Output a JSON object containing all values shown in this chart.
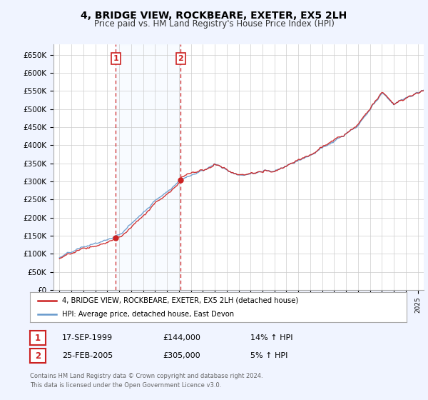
{
  "title": "4, BRIDGE VIEW, ROCKBEARE, EXETER, EX5 2LH",
  "subtitle": "Price paid vs. HM Land Registry's House Price Index (HPI)",
  "ylabel_ticks": [
    "£0",
    "£50K",
    "£100K",
    "£150K",
    "£200K",
    "£250K",
    "£300K",
    "£350K",
    "£400K",
    "£450K",
    "£500K",
    "£550K",
    "£600K",
    "£650K"
  ],
  "ytick_values": [
    0,
    50000,
    100000,
    150000,
    200000,
    250000,
    300000,
    350000,
    400000,
    450000,
    500000,
    550000,
    600000,
    650000
  ],
  "hpi_color": "#6699cc",
  "price_color": "#cc2222",
  "vline_color": "#cc2222",
  "sale1_year": 1999.72,
  "sale1_price": 144000,
  "sale2_year": 2005.15,
  "sale2_price": 305000,
  "legend_label1": "4, BRIDGE VIEW, ROCKBEARE, EXETER, EX5 2LH (detached house)",
  "legend_label2": "HPI: Average price, detached house, East Devon",
  "table_row1": [
    "1",
    "17-SEP-1999",
    "£144,000",
    "14% ↑ HPI"
  ],
  "table_row2": [
    "2",
    "25-FEB-2005",
    "£305,000",
    "5% ↑ HPI"
  ],
  "footnote": "Contains HM Land Registry data © Crown copyright and database right 2024.\nThis data is licensed under the Open Government Licence v3.0.",
  "bg_color": "#f0f4ff",
  "plot_bg": "#ffffff",
  "grid_color": "#cccccc",
  "shade_color": "#ddeeff",
  "xmin": 1994.5,
  "xmax": 2025.5,
  "ymax": 680000
}
